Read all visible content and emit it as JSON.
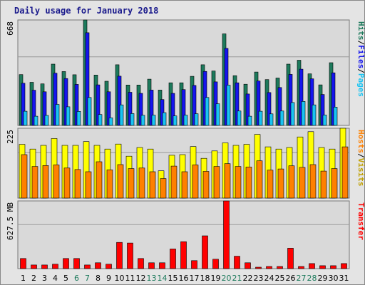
{
  "chart_data": [
    {
      "type": "bar",
      "title": "Daily usage for January 2018",
      "ylabel": "668",
      "side_label": [
        "Hits",
        "/",
        "Files",
        "/",
        "Pages"
      ],
      "categories": [
        "1",
        "2",
        "3",
        "4",
        "5",
        "6",
        "7",
        "8",
        "9",
        "10",
        "11",
        "12",
        "13",
        "14",
        "15",
        "16",
        "17",
        "18",
        "19",
        "20",
        "21",
        "22",
        "23",
        "24",
        "25",
        "26",
        "27",
        "28",
        "29",
        "30",
        "31"
      ],
      "weekend_days": [
        "6",
        "7",
        "13",
        "14",
        "20",
        "21",
        "27",
        "28"
      ],
      "ylim": [
        0,
        668
      ],
      "series": [
        {
          "name": "Hits",
          "color": "#1d7a5c",
          "values": [
            322,
            273,
            263,
            388,
            341,
            321,
            668,
            319,
            280,
            384,
            256,
            256,
            293,
            224,
            270,
            270,
            311,
            384,
            345,
            580,
            315,
            261,
            338,
            290,
            300,
            388,
            413,
            327,
            257,
            397,
            0
          ]
        },
        {
          "name": "Files",
          "color": "#1515ee",
          "values": [
            267,
            223,
            213,
            331,
            297,
            260,
            587,
            257,
            213,
            312,
            210,
            203,
            224,
            164,
            203,
            227,
            253,
            342,
            276,
            488,
            270,
            199,
            281,
            208,
            240,
            323,
            356,
            295,
            196,
            333,
            0
          ]
        },
        {
          "name": "Pages",
          "color": "#19c4f2",
          "values": [
            90,
            58,
            63,
            133,
            118,
            89,
            177,
            69,
            48,
            130,
            75,
            64,
            65,
            81,
            60,
            65,
            74,
            177,
            137,
            255,
            91,
            58,
            90,
            73,
            91,
            145,
            152,
            130,
            66,
            116,
            0
          ]
        }
      ]
    },
    {
      "type": "bar",
      "ylabel": "225",
      "side_label": [
        "Hosts",
        "/",
        "Visits"
      ],
      "categories": [
        "1",
        "2",
        "3",
        "4",
        "5",
        "6",
        "7",
        "8",
        "9",
        "10",
        "11",
        "12",
        "13",
        "14",
        "15",
        "16",
        "17",
        "18",
        "19",
        "20",
        "21",
        "22",
        "23",
        "24",
        "25",
        "26",
        "27",
        "28",
        "29",
        "30",
        "31"
      ],
      "ylim": [
        0,
        225
      ],
      "series": [
        {
          "name": "Visits",
          "color": "#ffff00",
          "values": [
            173,
            158,
            170,
            192,
            170,
            170,
            182,
            170,
            158,
            174,
            135,
            163,
            158,
            88,
            138,
            140,
            166,
            128,
            152,
            178,
            170,
            173,
            205,
            165,
            158,
            163,
            197,
            214,
            163,
            158,
            225
          ]
        },
        {
          "name": "Hosts",
          "color": "#ff8000",
          "values": [
            140,
            102,
            105,
            107,
            97,
            92,
            85,
            117,
            91,
            108,
            95,
            97,
            85,
            63,
            103,
            85,
            107,
            86,
            102,
            111,
            102,
            100,
            120,
            90,
            94,
            104,
            99,
            108,
            87,
            95,
            165
          ]
        }
      ]
    },
    {
      "type": "bar",
      "ylabel": "627.5 MB",
      "side_label": [
        "Transfer"
      ],
      "categories": [
        "1",
        "2",
        "3",
        "4",
        "5",
        "6",
        "7",
        "8",
        "9",
        "10",
        "11",
        "12",
        "13",
        "14",
        "15",
        "16",
        "17",
        "18",
        "19",
        "20",
        "21",
        "22",
        "23",
        "24",
        "25",
        "26",
        "27",
        "28",
        "29",
        "30",
        "31"
      ],
      "ylim": [
        0,
        627.5
      ],
      "series": [
        {
          "name": "Transfer",
          "color": "#ff0000",
          "values": [
            94,
            34,
            34,
            41,
            94,
            94,
            34,
            54,
            41,
            243,
            237,
            94,
            54,
            54,
            182,
            250,
            74,
            304,
            87,
            627.5,
            115,
            54,
            13,
            20,
            20,
            189,
            20,
            47,
            27,
            27,
            47
          ]
        }
      ]
    }
  ],
  "colors": {
    "title": "#1a1a8c",
    "hits_label": "#1d7a5c",
    "files_label": "#1515ee",
    "pages_label": "#19c4f2",
    "hosts_label": "#ff8000",
    "visits_label": "#c0a000",
    "transfer_label": "#ff0000",
    "weekday_text": "#000000",
    "weekend_text": "#1d7a5c",
    "panel_bg": "#d9d9d9",
    "page_bg": "#e4e4e4"
  }
}
